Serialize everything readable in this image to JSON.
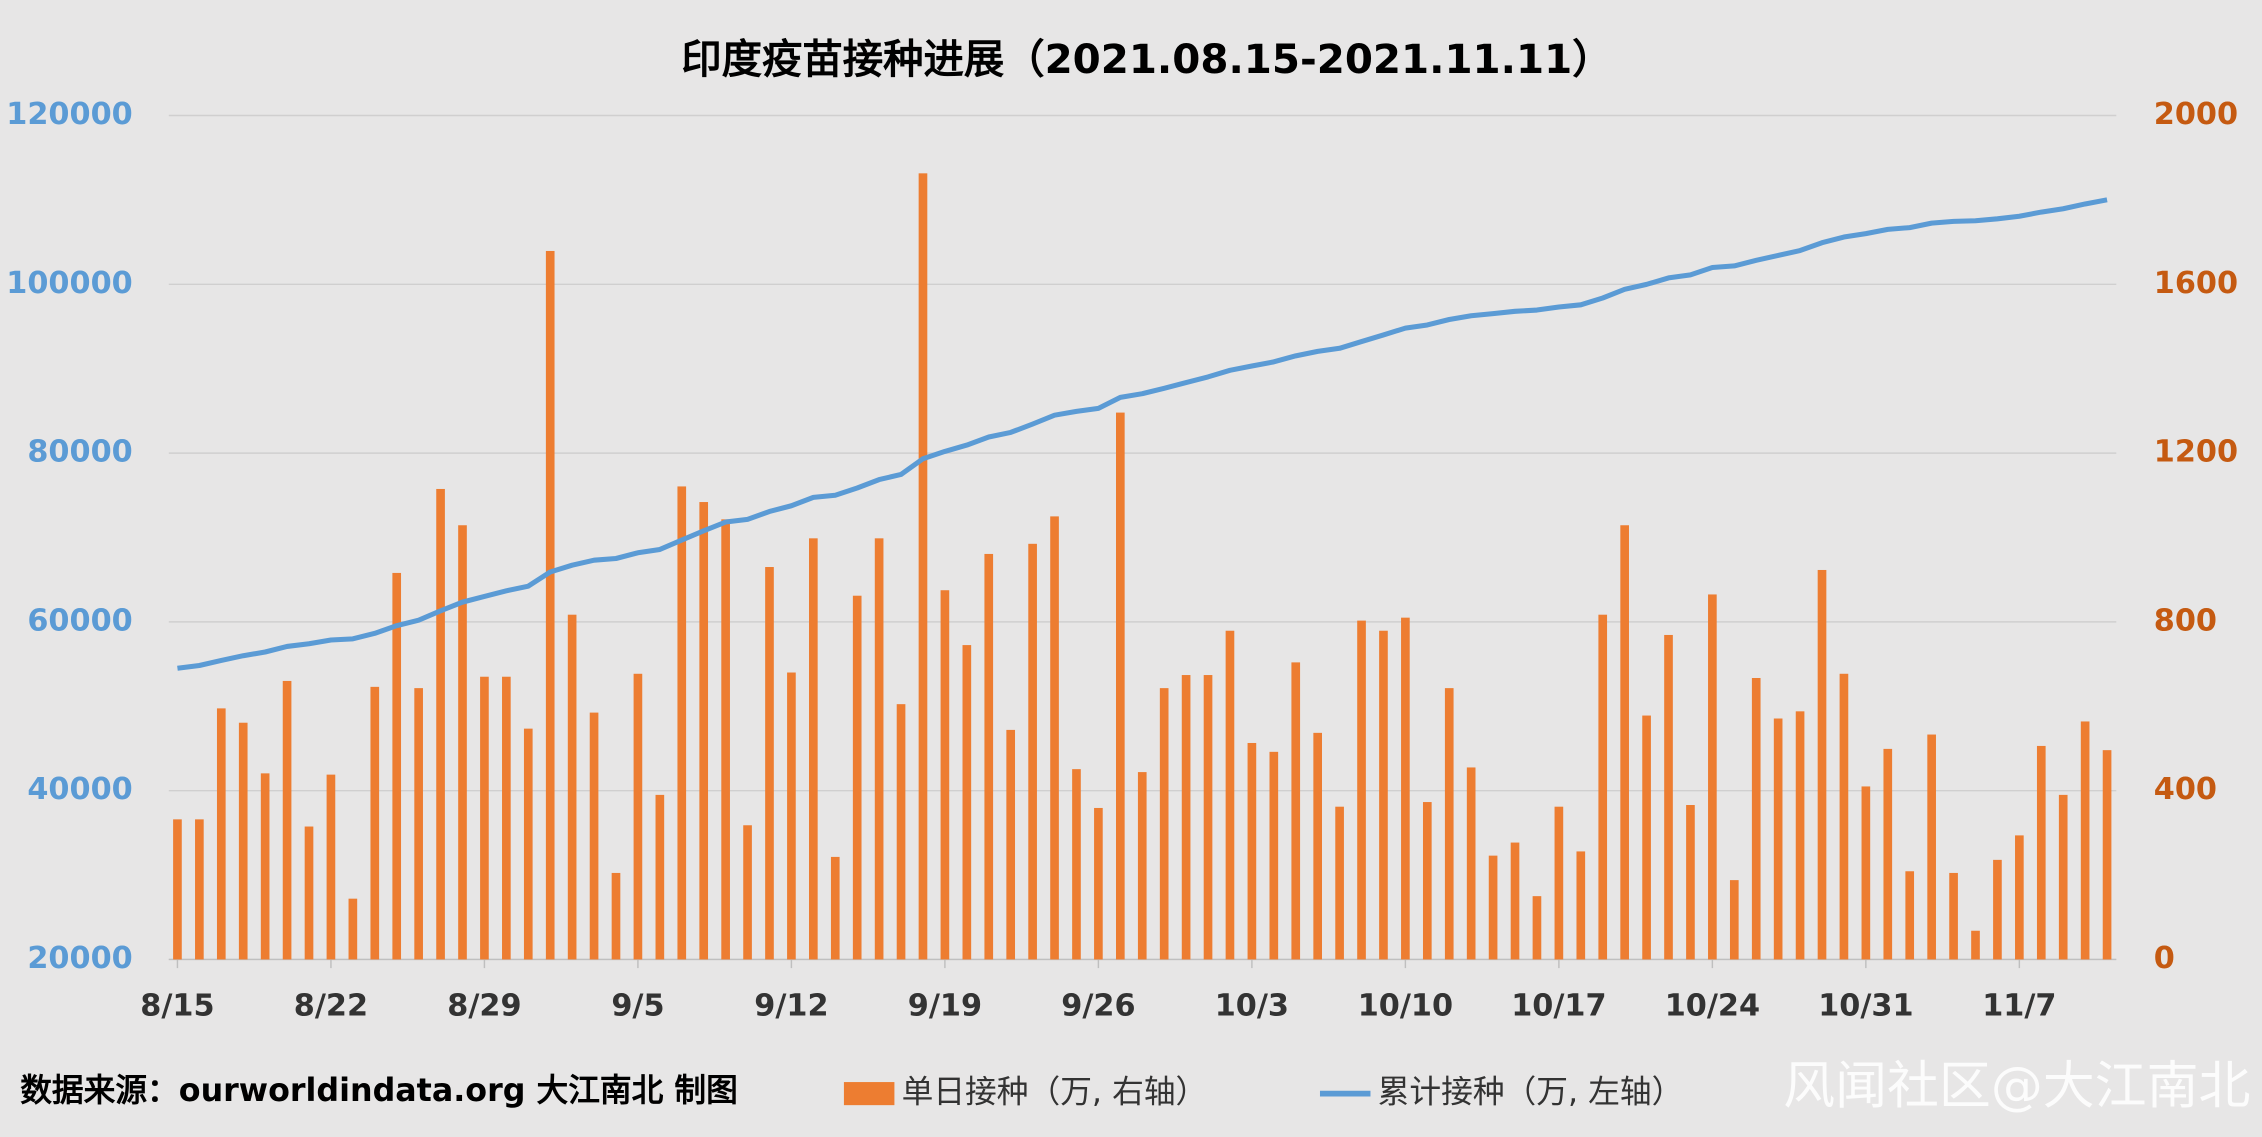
{
  "chart_data": {
    "type": "combo",
    "title": "印度疫苗接种进展（2021.08.15-2021.11.11）",
    "source": "数据来源：ourworldindata.org 大江南北 制图",
    "watermark": "风闻社区@大江南北",
    "categories": [
      "8/15",
      null,
      null,
      null,
      null,
      null,
      null,
      "8/22",
      null,
      null,
      null,
      null,
      null,
      null,
      "8/29",
      null,
      null,
      null,
      null,
      null,
      null,
      "9/5",
      null,
      null,
      null,
      null,
      null,
      null,
      "9/12",
      null,
      null,
      null,
      null,
      null,
      null,
      "9/19",
      null,
      null,
      null,
      null,
      null,
      null,
      "9/26",
      null,
      null,
      null,
      null,
      null,
      null,
      "10/3",
      null,
      null,
      null,
      null,
      null,
      null,
      "10/10",
      null,
      null,
      null,
      null,
      null,
      null,
      "10/17",
      null,
      null,
      null,
      null,
      null,
      null,
      "10/24",
      null,
      null,
      null,
      null,
      null,
      null,
      "10/31",
      null,
      null,
      null,
      null,
      null,
      null,
      "11/7",
      null,
      null,
      null,
      null
    ],
    "series": [
      {
        "name": "单日接种（万, 右轴）",
        "type": "bar",
        "axis": "y2",
        "color": "#ed7d31",
        "values": [
          332,
          332,
          595,
          561,
          441,
          660,
          315,
          438,
          144,
          646,
          916,
          643,
          1115,
          1029,
          670,
          670,
          547,
          1679,
          817,
          585,
          205,
          677,
          390,
          1121,
          1084,
          1043,
          318,
          930,
          680,
          998,
          243,
          862,
          998,
          605,
          1863,
          875,
          745,
          961,
          544,
          985,
          1050,
          451,
          359,
          1296,
          444,
          643,
          674,
          674,
          779,
          513,
          492,
          704,
          537,
          362,
          803,
          779,
          810,
          373,
          643,
          455,
          246,
          277,
          150,
          362,
          256,
          817,
          1029,
          578,
          769,
          366,
          865,
          188,
          667,
          571,
          588,
          923,
          677,
          410,
          499,
          209,
          533,
          205,
          68,
          236,
          294,
          506,
          390,
          564,
          496
        ]
      },
      {
        "name": "累计接种（万, 左轴）",
        "type": "line",
        "color": "#5b9bd5",
        "values": [
          54500,
          54830,
          55430,
          55990,
          56430,
          57090,
          57410,
          57850,
          57990,
          58640,
          59550,
          60200,
          61310,
          62340,
          63010,
          63680,
          64230,
          65910,
          66720,
          67310,
          67510,
          68190,
          68580,
          69700,
          70790,
          71830,
          72150,
          73080,
          73760,
          74750,
          75000,
          75860,
          76860,
          77470,
          79330,
          80200,
          80950,
          81910,
          82450,
          83440,
          84490,
          84940,
          85300,
          86600,
          87040,
          87680,
          88360,
          89030,
          89810,
          90320,
          90810,
          91520,
          92050,
          92420,
          93220,
          94000,
          94810,
          95180,
          95830,
          96280,
          96530,
          96800,
          96950,
          97310,
          97570,
          98380,
          99410,
          99990,
          100760,
          101120,
          101990,
          102180,
          102840,
          103420,
          104000,
          104930,
          105600,
          106010,
          106510,
          106720,
          107250,
          107460,
          107530,
          107760,
          108060,
          108560,
          108950,
          109520,
          110010
        ]
      }
    ],
    "ylim": [
      20000,
      120000
    ],
    "yticks": [
      20000,
      40000,
      60000,
      80000,
      100000,
      120000
    ],
    "y2lim": [
      0,
      2000
    ],
    "y2ticks": [
      0,
      400,
      800,
      1200,
      1600,
      2000
    ],
    "ycolor": "#5b9bd5",
    "y2color": "#c55a11",
    "grid": true
  }
}
